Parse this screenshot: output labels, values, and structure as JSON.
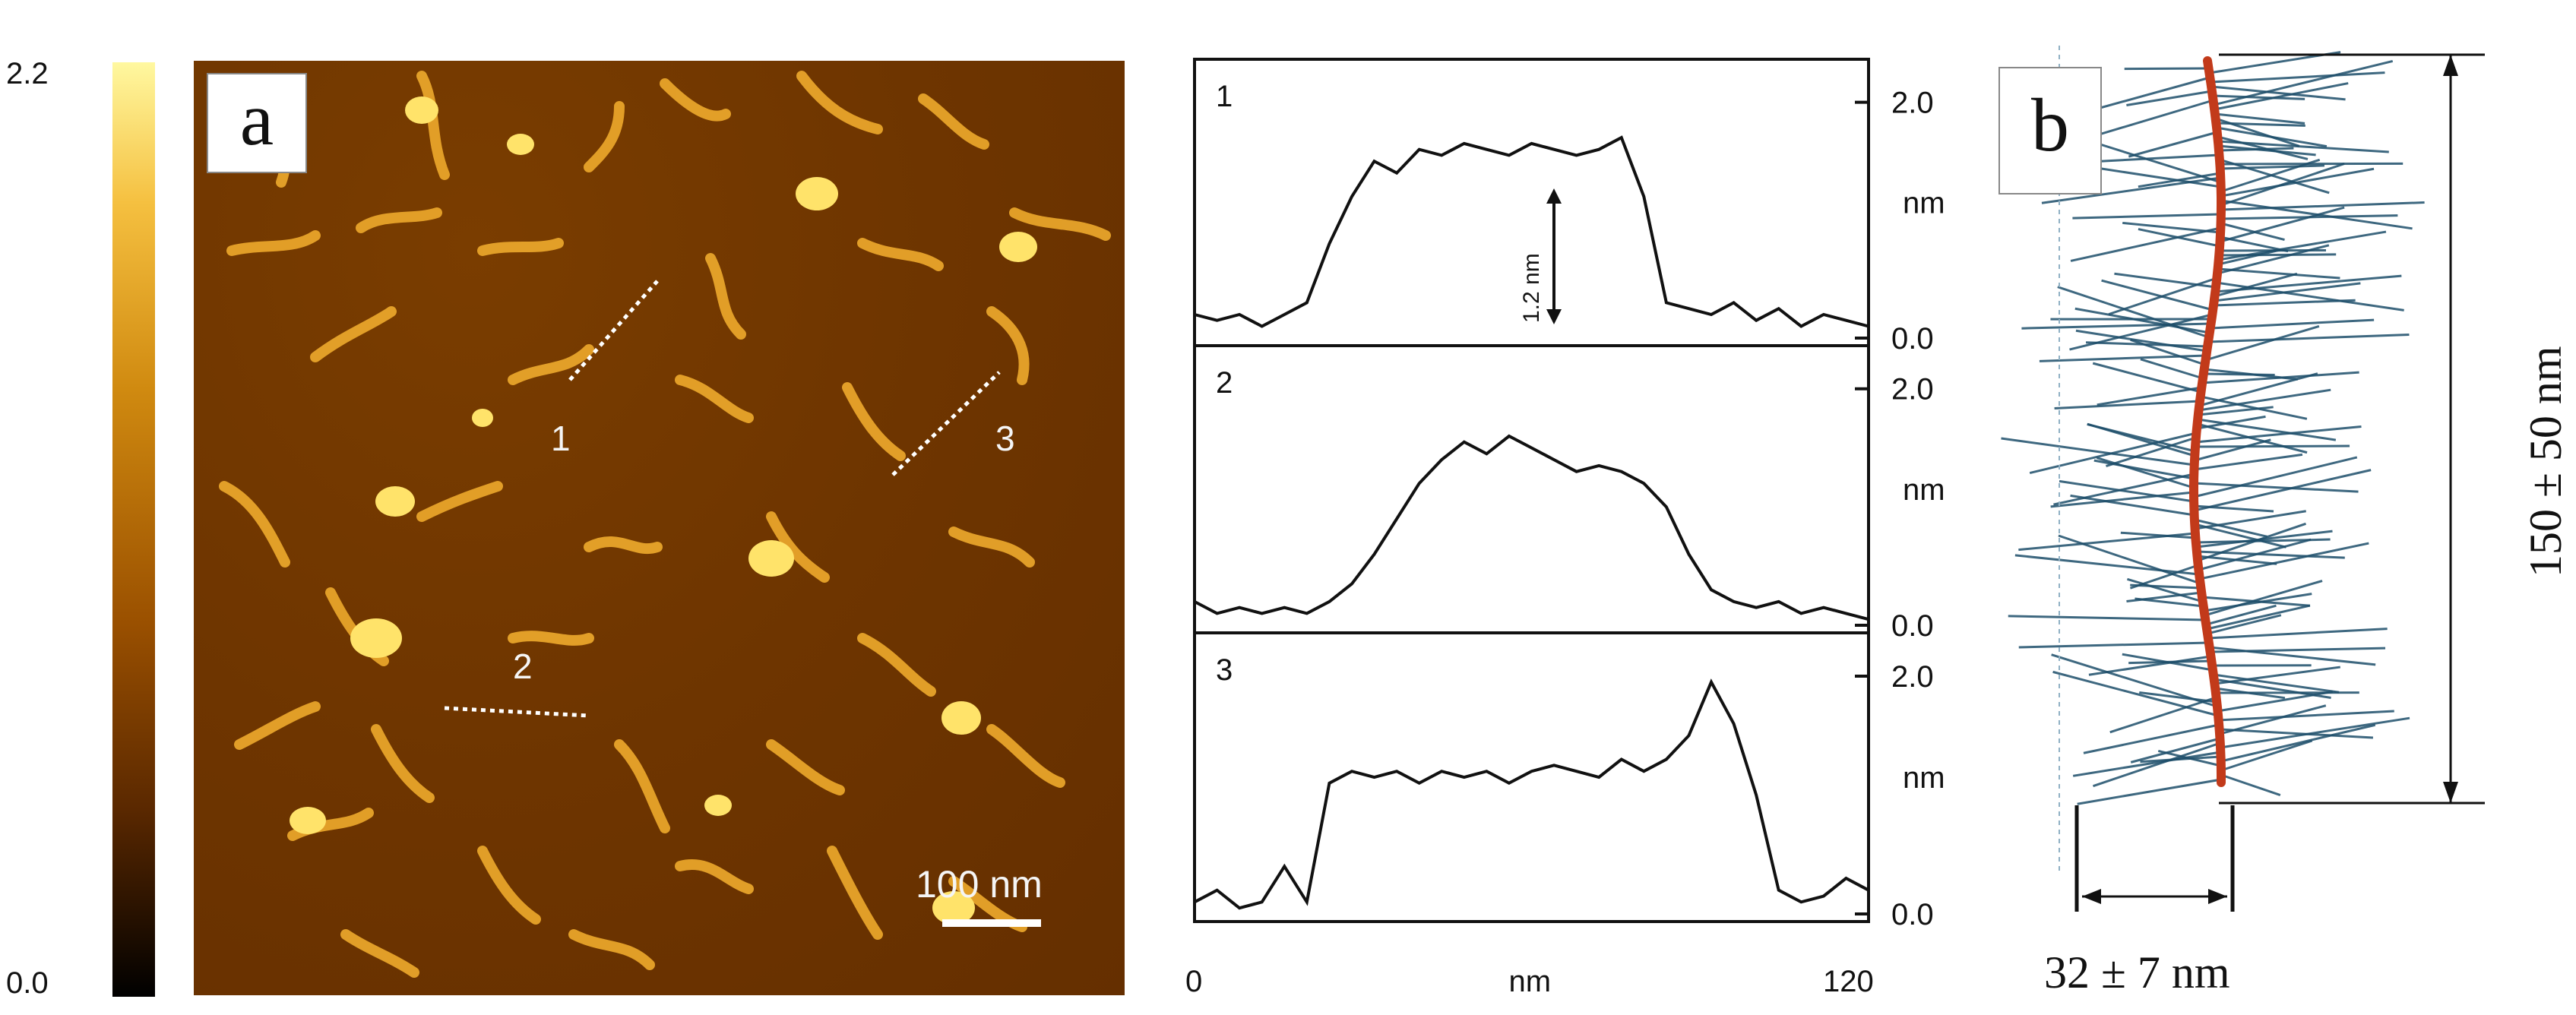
{
  "colorbar": {
    "max_label": "2.2",
    "min_label": "0.0"
  },
  "panel_a": {
    "letter": "a",
    "scalebar_label": "100 nm",
    "line_labels": [
      "1",
      "3",
      "2"
    ]
  },
  "profiles": {
    "panel_ids": [
      "1",
      "2",
      "3"
    ],
    "y_tick_top": "2.0",
    "y_tick_bottom": "0.0",
    "y_unit": "nm",
    "x_tick_start": "0",
    "x_tick_end": "120",
    "x_unit": "nm",
    "annotation": "1.2 nm"
  },
  "panel_b": {
    "letter": "b",
    "height_label": "150 ± 50 nm",
    "width_label": "32 ± 7 nm"
  },
  "colors": {
    "afm_dark": "#6b3300",
    "afm_bright": "#ffe060",
    "brush": "#1d4e6a",
    "backbone": "#c23a1a"
  },
  "chart_data": {
    "type": "line",
    "xlabel": "nm",
    "ylabel": "nm",
    "xlim": [
      0,
      120
    ],
    "ylim": [
      0,
      2.3
    ],
    "x": [
      0,
      4,
      8,
      12,
      16,
      20,
      24,
      28,
      32,
      36,
      40,
      44,
      48,
      52,
      56,
      60,
      64,
      68,
      72,
      76,
      80,
      84,
      88,
      92,
      96,
      100,
      104,
      108,
      112,
      116,
      120
    ],
    "series": [
      {
        "name": "1",
        "values": [
          0.2,
          0.15,
          0.2,
          0.1,
          0.2,
          0.3,
          0.8,
          1.2,
          1.5,
          1.4,
          1.6,
          1.55,
          1.65,
          1.6,
          1.55,
          1.65,
          1.6,
          1.55,
          1.6,
          1.7,
          1.2,
          0.3,
          0.25,
          0.2,
          0.3,
          0.15,
          0.25,
          0.1,
          0.2,
          0.15,
          0.1
        ]
      },
      {
        "name": "2",
        "values": [
          0.2,
          0.1,
          0.15,
          0.1,
          0.15,
          0.1,
          0.2,
          0.35,
          0.6,
          0.9,
          1.2,
          1.4,
          1.55,
          1.45,
          1.6,
          1.5,
          1.4,
          1.3,
          1.35,
          1.3,
          1.2,
          1.0,
          0.6,
          0.3,
          0.2,
          0.15,
          0.2,
          0.1,
          0.15,
          0.1,
          0.05
        ]
      },
      {
        "name": "3",
        "values": [
          0.1,
          0.2,
          0.05,
          0.1,
          0.4,
          0.1,
          1.1,
          1.2,
          1.15,
          1.2,
          1.1,
          1.2,
          1.15,
          1.2,
          1.1,
          1.2,
          1.25,
          1.2,
          1.15,
          1.3,
          1.2,
          1.3,
          1.5,
          1.95,
          1.6,
          1.0,
          0.2,
          0.1,
          0.15,
          0.3,
          0.2
        ]
      }
    ]
  }
}
